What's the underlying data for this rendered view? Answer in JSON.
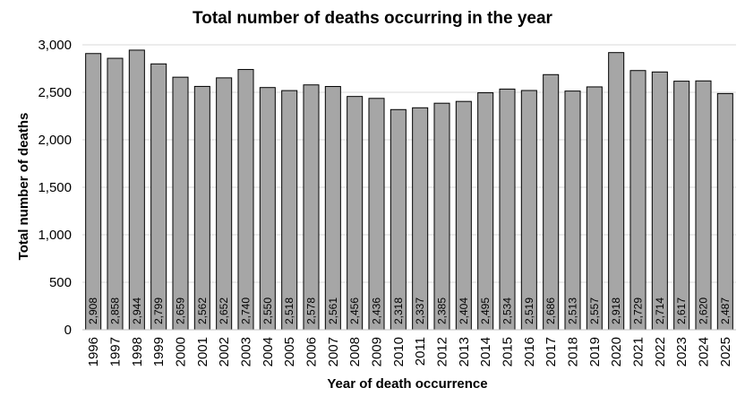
{
  "chart_data": {
    "type": "bar",
    "title": "Total number of deaths occurring in the year",
    "xlabel": "Year of death occurrence",
    "ylabel": "Total number of deaths",
    "ylim": [
      0,
      3000
    ],
    "yticks": [
      0,
      500,
      1000,
      1500,
      2000,
      2500,
      3000
    ],
    "ytick_labels": [
      "0",
      "500",
      "1,000",
      "1,500",
      "2,000",
      "2,500",
      "3,000"
    ],
    "grid": true,
    "categories": [
      "1996",
      "1997",
      "1998",
      "1999",
      "2000",
      "2001",
      "2002",
      "2003",
      "2004",
      "2005",
      "2006",
      "2007",
      "2008",
      "2009",
      "2010",
      "2011",
      "2012",
      "2013",
      "2014",
      "2015",
      "2016",
      "2017",
      "2018",
      "2019",
      "2020",
      "2021",
      "2022",
      "2023",
      "2024",
      "2025"
    ],
    "values": [
      2908,
      2858,
      2944,
      2799,
      2659,
      2562,
      2652,
      2740,
      2550,
      2518,
      2578,
      2561,
      2456,
      2436,
      2318,
      2337,
      2385,
      2404,
      2495,
      2534,
      2519,
      2686,
      2513,
      2557,
      2918,
      2729,
      2714,
      2617,
      2620,
      2487
    ],
    "value_labels": [
      "2,908",
      "2,858",
      "2,944",
      "2,799",
      "2,659",
      "2,562",
      "2,652",
      "2,740",
      "2,550",
      "2,518",
      "2,578",
      "2,561",
      "2,456",
      "2,436",
      "2,318",
      "2,337",
      "2,385",
      "2,404",
      "2,495",
      "2,534",
      "2,519",
      "2,686",
      "2,513",
      "2,557",
      "2,918",
      "2,729",
      "2,714",
      "2,617",
      "2,620",
      "2,487"
    ],
    "colors": {
      "bar_fill": "#a6a6a6",
      "bar_stroke": "#000000",
      "grid": "#d9d9d9"
    }
  }
}
